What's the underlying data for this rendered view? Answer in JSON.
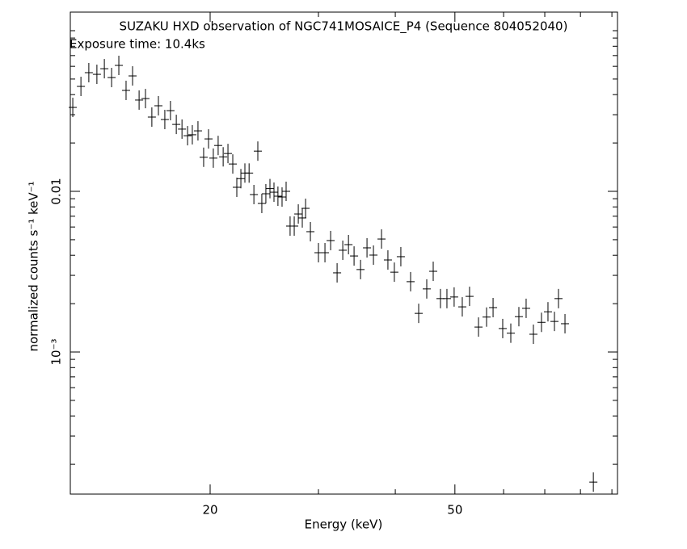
{
  "chart_data": {
    "type": "scatter",
    "title": "SUZAKU HXD observation of NGC741MOSAICE_P4 (Sequence 804052040)",
    "subtitle": "Exposure time: 10.4ks",
    "x_label": "Energy (keV)",
    "y_label": "normalized counts s⁻¹ keV⁻¹",
    "log_x": true,
    "log_y": true,
    "color": "#000000",
    "xlim": [
      11.85,
      91.9
    ],
    "ylim": [
      0.0001305,
      0.1305
    ],
    "xticks": [
      20,
      50
    ],
    "xminor": [
      30,
      40,
      60,
      70,
      80,
      90
    ],
    "yticks": [
      {
        "value": 0.001,
        "label": "10⁻³"
      },
      0.01
    ],
    "yminor": [
      0.0002,
      0.0003,
      0.0004,
      0.0005,
      0.0006,
      0.0007,
      0.0008,
      0.0009,
      0.002,
      0.003,
      0.004,
      0.005,
      0.006,
      0.007,
      0.008,
      0.009,
      0.02,
      0.03,
      0.04,
      0.05,
      0.06,
      0.07,
      0.08,
      0.09,
      0.1
    ],
    "series": [
      {
        "x": [
          11.96,
          12.33,
          12.7,
          13.09,
          13.46,
          13.83,
          14.21,
          14.6,
          14.96,
          15.33,
          15.7,
          16.08,
          16.48,
          16.88,
          17.24,
          17.62,
          18.0,
          18.38,
          18.71,
          19.11,
          19.52,
          19.88,
          20.24,
          20.61,
          21.0,
          21.38,
          21.77,
          22.1,
          22.44,
          22.78,
          23.14,
          23.56,
          23.91,
          24.27,
          24.64,
          25.02,
          25.4,
          25.78,
          26.18,
          26.58,
          26.98,
          27.4,
          27.82,
          28.24,
          28.59,
          29.11,
          30.0,
          30.74,
          31.4,
          32.17,
          32.86,
          33.57,
          34.28,
          35.12,
          35.98,
          36.86,
          37.99,
          38.91,
          39.86,
          40.84,
          42.36,
          43.66,
          45.0,
          46.1,
          47.37,
          48.53,
          49.86,
          51.4,
          52.82,
          54.62,
          56.29,
          57.68,
          59.8,
          61.64,
          63.53,
          65.28,
          67.08,
          69.14,
          70.84,
          72.58,
          73.69,
          75.5,
          83.96
        ],
        "values": [
          0.0333,
          0.045,
          0.0548,
          0.0535,
          0.058,
          0.0511,
          0.0608,
          0.0425,
          0.0523,
          0.037,
          0.0378,
          0.029,
          0.0341,
          0.028,
          0.0318,
          0.0261,
          0.0244,
          0.0222,
          0.0225,
          0.0238,
          0.0163,
          0.0212,
          0.0161,
          0.0193,
          0.0164,
          0.0172,
          0.0148,
          0.0106,
          0.012,
          0.013,
          0.013,
          0.00955,
          0.0178,
          0.00841,
          0.00966,
          0.0104,
          0.00988,
          0.00933,
          0.00922,
          0.01,
          0.00608,
          0.00608,
          0.00723,
          0.00683,
          0.00784,
          0.00561,
          0.00415,
          0.00415,
          0.00494,
          0.00311,
          0.0043,
          0.00466,
          0.00396,
          0.00326,
          0.00445,
          0.00401,
          0.00505,
          0.00374,
          0.00314,
          0.00392,
          0.00274,
          0.00174,
          0.00247,
          0.00318,
          0.00215,
          0.00215,
          0.0022,
          0.00191,
          0.00222,
          0.00143,
          0.00165,
          0.00189,
          0.0014,
          0.00131,
          0.00166,
          0.00187,
          0.00129,
          0.00153,
          0.00178,
          0.00155,
          0.00215,
          0.0015,
          0.000155
        ]
      }
    ]
  }
}
